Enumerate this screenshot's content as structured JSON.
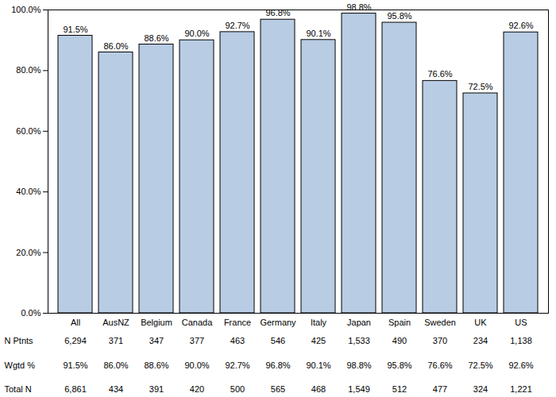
{
  "chart_data": {
    "type": "bar",
    "categories": [
      "All",
      "AusNZ",
      "Belgium",
      "Canada",
      "France",
      "Germany",
      "Italy",
      "Japan",
      "Spain",
      "Sweden",
      "UK",
      "US"
    ],
    "values": [
      91.5,
      86.0,
      88.6,
      90.0,
      92.7,
      96.8,
      90.1,
      98.8,
      95.8,
      76.6,
      72.5,
      92.6
    ],
    "value_labels": [
      "91.5%",
      "86.0%",
      "88.6%",
      "90.0%",
      "92.7%",
      "96.8%",
      "90.1%",
      "98.8%",
      "95.8%",
      "76.6%",
      "72.5%",
      "92.6%"
    ],
    "data_labels": true,
    "color": "#b8cce4",
    "ylim": [
      0,
      100
    ],
    "yticks": [
      {
        "value": 0,
        "label": "0.0%"
      },
      {
        "value": 20,
        "label": "20.0%"
      },
      {
        "value": 40,
        "label": "40.0%"
      },
      {
        "value": 60,
        "label": "60.0%"
      },
      {
        "value": 80,
        "label": "80.0%"
      },
      {
        "value": 100,
        "label": "100.0%"
      }
    ],
    "grid": false,
    "table": {
      "rows": [
        {
          "label": "N Ptnts",
          "cells": [
            "6,294",
            "371",
            "347",
            "377",
            "463",
            "546",
            "425",
            "1,533",
            "490",
            "370",
            "234",
            "1,138"
          ]
        },
        {
          "label": "Wgtd %",
          "cells": [
            "91.5%",
            "86.0%",
            "88.6%",
            "90.0%",
            "92.7%",
            "96.8%",
            "90.1%",
            "98.8%",
            "95.8%",
            "76.6%",
            "72.5%",
            "92.6%"
          ]
        },
        {
          "label": "Total N",
          "cells": [
            "6,861",
            "434",
            "391",
            "420",
            "500",
            "565",
            "468",
            "1,549",
            "512",
            "477",
            "324",
            "1,221"
          ]
        }
      ]
    }
  }
}
